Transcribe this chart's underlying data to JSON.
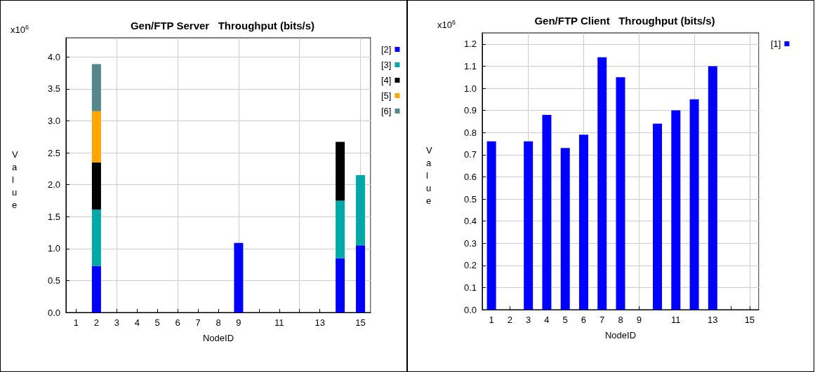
{
  "chart_data": [
    {
      "type": "bar",
      "title": "Gen/FTP Server   Throughput (bits/s)",
      "xlabel": "NodeID",
      "ylabel": "Value",
      "annotations": [
        "x10$^{6}$"
      ],
      "stacked": true,
      "grid": true,
      "legend": "right",
      "categories": [
        "1",
        "2",
        "3",
        "4",
        "5",
        "6",
        "7",
        "8",
        "9",
        null,
        "11",
        null,
        "13",
        null,
        "15"
      ],
      "ylim": [
        0,
        4.3
      ],
      "yticks": [
        {
          "value": 0,
          "label": "0.0"
        },
        {
          "value": 0.5,
          "label": "0.5"
        },
        {
          "value": 1,
          "label": "1.0"
        },
        {
          "value": 1.5,
          "label": "1.5"
        },
        {
          "value": 2,
          "label": "2.0"
        },
        {
          "value": 2.5,
          "label": "2.5"
        },
        {
          "value": 3,
          "label": "3.0"
        },
        {
          "value": 3.5,
          "label": "3.5"
        },
        {
          "value": 4,
          "label": "4.0"
        }
      ],
      "series": [
        {
          "name": "[2]",
          "color": "#0000ff",
          "values": [
            null,
            0.73,
            null,
            null,
            null,
            null,
            null,
            null,
            1.09,
            null,
            null,
            null,
            null,
            0.85,
            1.05
          ]
        },
        {
          "name": "[3]",
          "color": "#00a8a8",
          "values": [
            null,
            0.88,
            null,
            null,
            null,
            null,
            null,
            null,
            null,
            null,
            null,
            null,
            null,
            0.9,
            1.1
          ]
        },
        {
          "name": "[4]",
          "color": "#000000",
          "values": [
            null,
            0.74,
            null,
            null,
            null,
            null,
            null,
            null,
            null,
            null,
            null,
            null,
            null,
            0.92,
            null
          ]
        },
        {
          "name": "[5]",
          "color": "#ffa500",
          "values": [
            null,
            0.8,
            null,
            null,
            null,
            null,
            null,
            null,
            null,
            null,
            null,
            null,
            null,
            null,
            null
          ]
        },
        {
          "name": "[6]",
          "color": "#558888",
          "values": [
            null,
            0.74,
            null,
            null,
            null,
            null,
            null,
            null,
            null,
            null,
            null,
            null,
            null,
            null,
            null
          ]
        }
      ]
    },
    {
      "type": "bar",
      "title": "Gen/FTP Client   Throughput (bits/s)",
      "xlabel": "NodeID",
      "ylabel": "Value",
      "annotations": [
        "x10$^{6}$"
      ],
      "grid": true,
      "legend": "right",
      "categories": [
        "1",
        "2",
        "3",
        "4",
        "5",
        "6",
        "7",
        "8",
        "9",
        null,
        "11",
        null,
        "13",
        null,
        "15"
      ],
      "ylim": [
        0,
        1.25
      ],
      "yticks": [
        {
          "value": 0,
          "label": "0.0"
        },
        {
          "value": 0.1,
          "label": "0.1"
        },
        {
          "value": 0.2,
          "label": "0.2"
        },
        {
          "value": 0.3,
          "label": "0.3"
        },
        {
          "value": 0.4,
          "label": "0.4"
        },
        {
          "value": 0.5,
          "label": "0.5"
        },
        {
          "value": 0.6,
          "label": "0.6"
        },
        {
          "value": 0.7,
          "label": "0.7"
        },
        {
          "value": 0.8,
          "label": "0.8"
        },
        {
          "value": 0.9,
          "label": "0.9"
        },
        {
          "value": 1,
          "label": "1.0"
        },
        {
          "value": 1.1,
          "label": "1.1"
        },
        {
          "value": 1.2,
          "label": "1.2"
        }
      ],
      "series": [
        {
          "name": "[1]",
          "color": "#0000ff",
          "values": [
            0.76,
            null,
            0.76,
            0.88,
            0.73,
            0.79,
            1.14,
            1.05,
            null,
            0.84,
            0.9,
            0.95,
            1.1,
            null,
            null
          ]
        }
      ]
    }
  ]
}
